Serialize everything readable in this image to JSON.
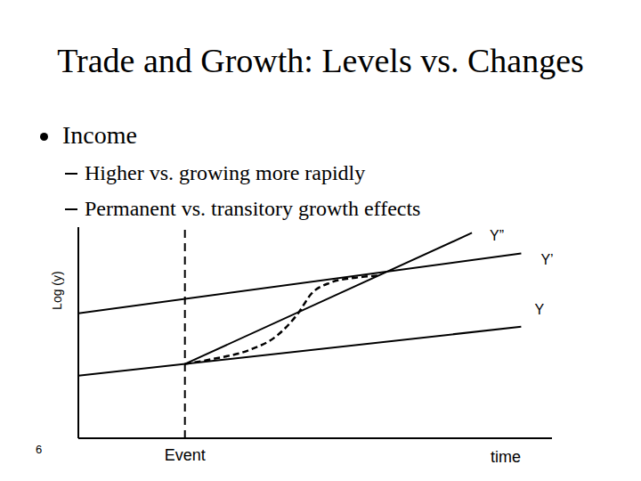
{
  "title": "Trade and Growth: Levels vs. Changes",
  "bullets": [
    {
      "text": "Income",
      "items": [
        "Higher vs. growing more rapidly",
        "Permanent vs. transitory growth effects"
      ]
    }
  ],
  "page_number": 6,
  "chart_data": {
    "type": "line",
    "x_label": "time",
    "y_label": "Log (y)",
    "xlim": [
      0,
      10
    ],
    "ylim": [
      0,
      11
    ],
    "xticks": [],
    "yticks": [],
    "tick_labels": false,
    "grid": false,
    "annotations": [
      {
        "text": "Event",
        "x": 2.25
      }
    ],
    "series": [
      {
        "name": "Y",
        "color": "#000000",
        "line_style": "solid",
        "x": [
          0,
          9.35
        ],
        "values": [
          3.26,
          5.81
        ]
      },
      {
        "name": "Y’",
        "color": "#000000",
        "line_style": "solid",
        "x": [
          0,
          9.35
        ],
        "values": [
          6.51,
          9.63
        ]
      },
      {
        "name": "Y”",
        "color": "#000000",
        "line_style": "solid",
        "x": [
          2.25,
          8.31
        ],
        "values": [
          3.87,
          10.7
        ]
      },
      {
        "color": "#000000",
        "line_style": "dashed",
        "x": [
          2.25,
          2.86,
          3.61,
          4.17,
          4.64,
          4.92,
          5.3,
          5.86,
          6.33
        ],
        "values": [
          3.87,
          4.14,
          4.6,
          5.3,
          6.51,
          7.53,
          8.09,
          8.37,
          8.47
        ]
      }
    ]
  }
}
